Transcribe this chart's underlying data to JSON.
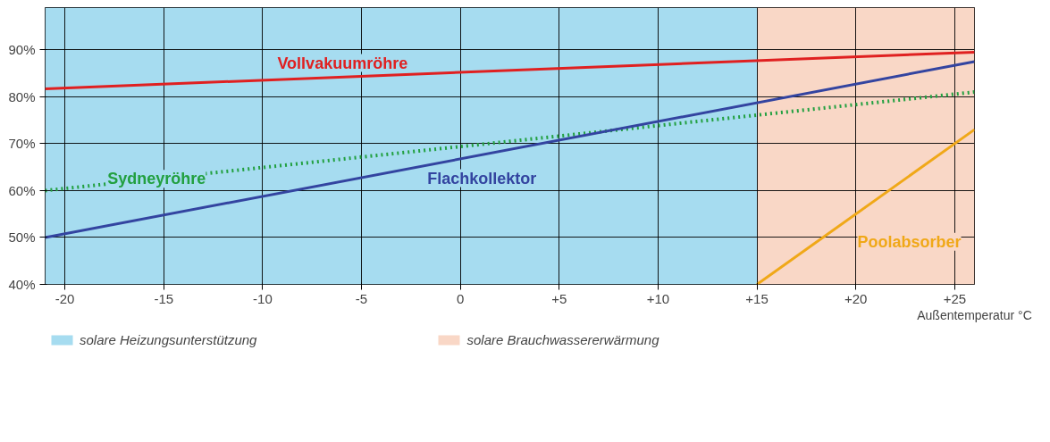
{
  "chart_data": {
    "type": "line",
    "xlabel": "Außentemperatur °C",
    "xlim": [
      -21,
      26
    ],
    "ylim": [
      40,
      99
    ],
    "xticks": [
      -20,
      -15,
      -10,
      -5,
      0,
      {
        "value": 5,
        "label": "+5"
      },
      {
        "value": 10,
        "label": "+10"
      },
      {
        "value": 15,
        "label": "+15"
      },
      {
        "value": 20,
        "label": "+20"
      },
      {
        "value": 25,
        "label": "+25"
      }
    ],
    "yticks": [
      {
        "value": 40,
        "label": "40%"
      },
      {
        "value": 50,
        "label": "50%"
      },
      {
        "value": 60,
        "label": "60%"
      },
      {
        "value": 70,
        "label": "70%"
      },
      {
        "value": 80,
        "label": "80%"
      },
      {
        "value": 90,
        "label": "90%"
      }
    ],
    "grid": true,
    "legend": "bottom",
    "bands": [
      {
        "axis": "x",
        "from": -21,
        "to": 15,
        "label": "solare Heizungsunterstützung",
        "color": "#a6dcf0"
      },
      {
        "axis": "x",
        "from": 15,
        "to": 26,
        "label": "solare Brauchwassererwärmung",
        "color": "#f9d7c6"
      }
    ],
    "series": [
      {
        "name": "Vollvakuumröhre",
        "color": "#e02020",
        "x": [
          -21,
          26
        ],
        "values": [
          81.7,
          89.5
        ]
      },
      {
        "name": "Sydneyröhre",
        "color": "#22a040",
        "x": [
          -21,
          26
        ],
        "values": [
          60,
          81
        ],
        "line_style": "dotted"
      },
      {
        "name": "Flachkollektor",
        "color": "#3344a0",
        "x": [
          -21,
          26
        ],
        "values": [
          50,
          87.5
        ]
      },
      {
        "name": "Poolabsorber",
        "color": "#f0a818",
        "x": [
          15,
          26
        ],
        "values": [
          40,
          73
        ]
      }
    ]
  }
}
